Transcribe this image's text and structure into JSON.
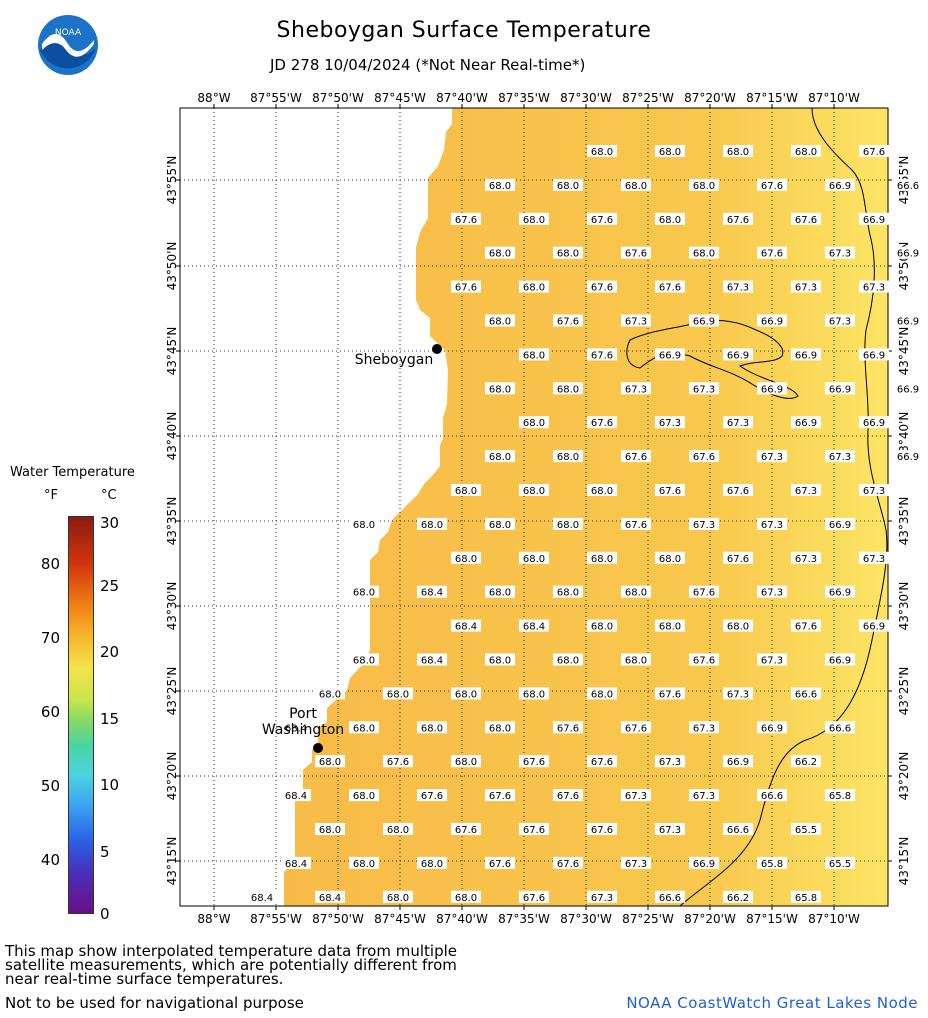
{
  "title": "Sheboygan Surface Temperature",
  "subtitle": "JD 278 10/04/2024 (*Not Near Real-time*)",
  "logo_text": "NOAA",
  "legend": {
    "title": "Water Temperature",
    "unit_f": "°F",
    "unit_c": "°C",
    "f_ticks": [
      "80",
      "70",
      "60",
      "50",
      "40"
    ],
    "c_ticks": [
      "30",
      "25",
      "20",
      "15",
      "10",
      "5",
      "0"
    ]
  },
  "axes": {
    "lon_labels": [
      "88°W",
      "87°55'W",
      "87°50'W",
      "87°45'W",
      "87°40'W",
      "87°35'W",
      "87°30'W",
      "87°25'W",
      "87°20'W",
      "87°15'W",
      "87°10'W"
    ],
    "lat_labels": [
      "43°55'N",
      "43°50'N",
      "43°45'N",
      "43°40'N",
      "43°35'N",
      "43°30'N",
      "43°25'N",
      "43°20'N",
      "43°15'N"
    ]
  },
  "places": [
    {
      "name": "Sheboygan"
    },
    {
      "name": "Port\nWashington"
    }
  ],
  "colors": {
    "water": "#f9c44a",
    "water_light": "#fbe35e",
    "land": "#ffffff",
    "credit": "#1f5fd6"
  },
  "temps": {
    "rows": [
      [
        null,
        null,
        null,
        null,
        null,
        "68.0",
        "68.0",
        "68.0",
        "68.0",
        "67.6",
        "66.6"
      ],
      [
        null,
        null,
        null,
        null,
        "68.0",
        "68.0",
        "68.0",
        "68.0",
        "67.6",
        "66.9",
        "66.6"
      ],
      [
        null,
        null,
        null,
        "67.6",
        "68.0",
        "67.6",
        "68.0",
        "67.6",
        "67.6",
        "66.9",
        null
      ],
      [
        null,
        null,
        null,
        null,
        "68.0",
        "68.0",
        "67.6",
        "68.0",
        "67.6",
        "67.3",
        "66.9"
      ],
      [
        null,
        null,
        null,
        "67.6",
        "68.0",
        "67.6",
        "67.6",
        "67.3",
        "67.3",
        "67.3",
        null
      ],
      [
        null,
        null,
        null,
        null,
        "68.0",
        "67.6",
        "67.3",
        "66.9",
        "66.9",
        "67.3",
        "66.9"
      ],
      [
        null,
        null,
        null,
        null,
        "68.0",
        "67.6",
        "66.9",
        "66.9",
        "66.9",
        "66.9",
        null
      ],
      [
        null,
        null,
        null,
        null,
        "68.0",
        "68.0",
        "67.3",
        "67.3",
        "66.9",
        "66.9",
        "66.9"
      ],
      [
        null,
        null,
        null,
        null,
        "68.0",
        "67.6",
        "67.3",
        "67.3",
        "66.9",
        "66.9",
        null
      ],
      [
        null,
        null,
        null,
        null,
        "68.0",
        "68.0",
        "67.6",
        "67.6",
        "67.3",
        "67.3",
        "66.9"
      ],
      [
        null,
        null,
        null,
        "68.0",
        "68.0",
        "68.0",
        "67.6",
        "67.6",
        "67.3",
        "67.3",
        null
      ],
      [
        null,
        null,
        "68.0",
        "68.0",
        "68.0",
        "68.0",
        "67.6",
        "67.3",
        "67.3",
        "66.9",
        null
      ],
      [
        null,
        null,
        null,
        "68.0",
        "68.0",
        "68.0",
        "68.0",
        "67.6",
        "67.3",
        "67.3",
        null
      ],
      [
        null,
        null,
        "68.0",
        "68.4",
        "68.0",
        "68.0",
        "68.0",
        "67.6",
        "67.3",
        "66.9",
        null
      ],
      [
        null,
        null,
        null,
        "68.4",
        "68.4",
        "68.0",
        "68.0",
        "68.0",
        "67.6",
        "66.9",
        null
      ],
      [
        null,
        null,
        "68.0",
        "68.4",
        "68.0",
        "68.0",
        "68.0",
        "67.6",
        "67.3",
        "66.9",
        null
      ],
      [
        null,
        "68.0",
        "68.0",
        "68.0",
        "68.0",
        "68.0",
        "67.6",
        "67.3",
        "66.6",
        null,
        null
      ],
      [
        null,
        "68.4",
        "68.0",
        "68.0",
        "68.0",
        "67.6",
        "67.6",
        "67.3",
        "66.9",
        "66.6",
        null
      ],
      [
        null,
        "68.0",
        "67.6",
        "68.0",
        "67.6",
        "67.6",
        "67.3",
        "66.9",
        "66.2",
        null,
        null
      ],
      [
        null,
        "68.4",
        "68.0",
        "67.6",
        "67.6",
        "67.6",
        "67.3",
        "67.3",
        "66.6",
        "65.8",
        null
      ],
      [
        null,
        "68.0",
        "68.0",
        "67.6",
        "67.6",
        "67.6",
        "67.3",
        "66.6",
        "65.5",
        null,
        null
      ],
      [
        null,
        "68.4",
        "68.0",
        "68.0",
        "67.6",
        "67.6",
        "67.3",
        "66.9",
        "65.8",
        "65.5",
        null
      ],
      [
        "68.4",
        "68.4",
        "68.0",
        "68.0",
        "67.6",
        "67.3",
        "66.6",
        "66.2",
        "65.8",
        null,
        null
      ]
    ]
  },
  "note": "This map show interpolated temperature data from multiple satellite measurements, which are potentially different from near real-time surface temperatures.",
  "note2": "Not to be used for navigational purpose",
  "credit": "NOAA CoastWatch Great Lakes Node"
}
